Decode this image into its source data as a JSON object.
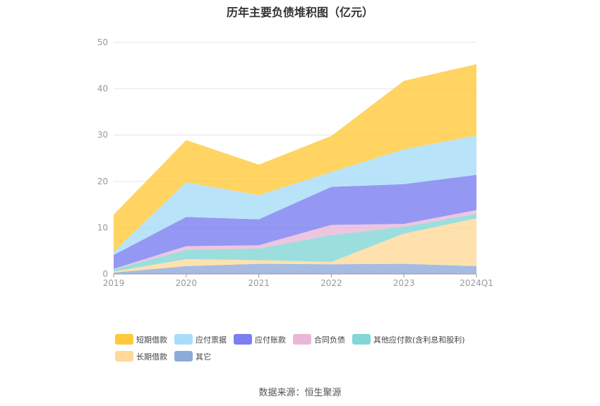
{
  "chart_data": {
    "type": "area",
    "stacked": true,
    "title": "历年主要负债堆积图（亿元）",
    "categories": [
      "2019",
      "2020",
      "2021",
      "2022",
      "2023",
      "2024Q1"
    ],
    "ylim": [
      0,
      50
    ],
    "yticks": [
      0,
      10,
      20,
      30,
      40,
      50
    ],
    "grid": true,
    "legend_position": "bottom",
    "series": [
      {
        "name": "其它",
        "color": "#8eaadb",
        "values": [
          0.3,
          1.7,
          2.2,
          2.1,
          2.2,
          1.7
        ]
      },
      {
        "name": "长期借款",
        "color": "#ffd99a",
        "values": [
          0.2,
          1.5,
          0.8,
          0.5,
          6.5,
          10.3
        ]
      },
      {
        "name": "其他应付款(含利息和股利)",
        "color": "#83d6d6",
        "values": [
          0.5,
          2.0,
          2.5,
          5.8,
          1.5,
          1.0
        ]
      },
      {
        "name": "合同负债",
        "color": "#eab6d8",
        "values": [
          0.1,
          0.8,
          0.7,
          2.2,
          0.6,
          0.8
        ]
      },
      {
        "name": "应付账款",
        "color": "#7b7ef0",
        "values": [
          3.0,
          6.3,
          5.6,
          8.2,
          8.6,
          7.6
        ]
      },
      {
        "name": "应付票据",
        "color": "#a8dcf8",
        "values": [
          0.7,
          7.5,
          5.2,
          3.2,
          7.5,
          8.5
        ]
      },
      {
        "name": "短期借款",
        "color": "#ffc93c",
        "values": [
          8.0,
          9.1,
          6.6,
          7.8,
          14.8,
          15.4
        ]
      }
    ]
  },
  "legend_order": [
    6,
    5,
    4,
    3,
    2,
    1,
    0
  ],
  "footer": {
    "source": "数据来源：恒生聚源"
  }
}
